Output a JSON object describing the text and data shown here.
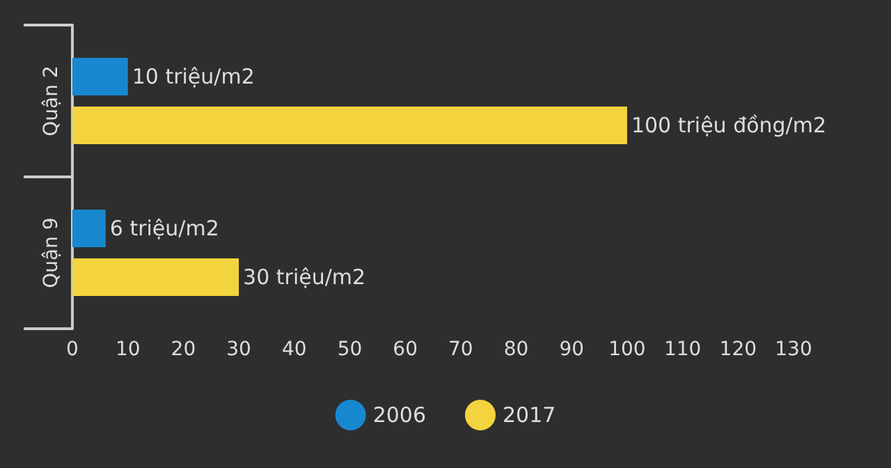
{
  "chart_data": {
    "type": "bar",
    "orientation": "horizontal",
    "categories": [
      "Quận 2",
      "Quận 9"
    ],
    "series": [
      {
        "name": "2006",
        "color": "#1788d0",
        "values": [
          10,
          6
        ],
        "value_labels": [
          "10 triệu/m2",
          "6 triệu/m2"
        ]
      },
      {
        "name": "2017",
        "color": "#f3d43f",
        "values": [
          100,
          30
        ],
        "value_labels": [
          "100 triệu đồng/m2",
          "30 triệu/m2"
        ]
      }
    ],
    "xlim": [
      0,
      130
    ],
    "xticks": [
      0,
      10,
      20,
      30,
      40,
      50,
      60,
      70,
      80,
      90,
      100,
      110,
      120,
      130
    ],
    "grid": false,
    "legend": "bottom"
  }
}
